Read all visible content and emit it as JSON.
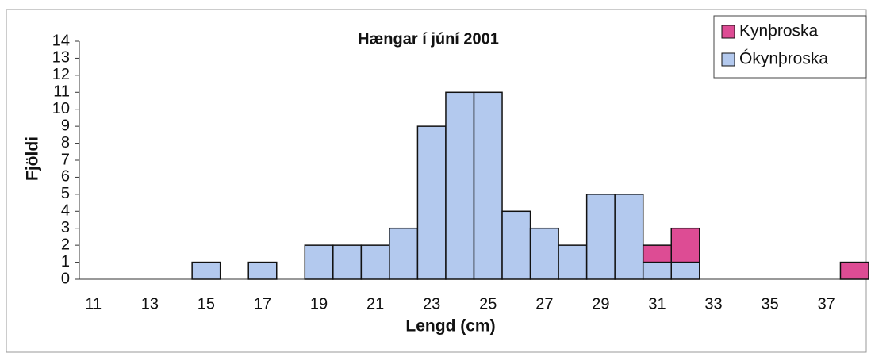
{
  "chart_data": {
    "type": "bar",
    "stacked": true,
    "title": "Hængar í júní 2001",
    "xlabel": "Lengd (cm)",
    "ylabel": "Fjöldi",
    "categories": [
      "11",
      null,
      "13",
      null,
      "15",
      null,
      "17",
      null,
      "19",
      null,
      "21",
      null,
      "23",
      null,
      "25",
      null,
      "27",
      null,
      "29",
      null,
      "31",
      null,
      "33",
      null,
      "35",
      null,
      "37",
      null
    ],
    "series": [
      {
        "name": "Kynþroska",
        "color": "#dd4c94",
        "values": [
          0,
          0,
          0,
          0,
          0,
          0,
          0,
          0,
          0,
          0,
          0,
          0,
          0,
          0,
          0,
          0,
          0,
          0,
          0,
          0,
          1,
          2,
          0,
          0,
          0,
          0,
          0,
          1
        ]
      },
      {
        "name": "Ókynþroska",
        "color": "#b3c9ee",
        "values": [
          0,
          0,
          0,
          0,
          1,
          0,
          1,
          0,
          2,
          2,
          2,
          3,
          9,
          11,
          11,
          4,
          3,
          2,
          5,
          5,
          1,
          1,
          0,
          0,
          0,
          0,
          0,
          0
        ]
      }
    ],
    "ylim": [
      0,
      14
    ],
    "yticks": [
      0,
      1,
      2,
      3,
      4,
      5,
      6,
      7,
      8,
      9,
      10,
      11,
      12,
      13,
      14
    ],
    "legend": "top-right"
  }
}
